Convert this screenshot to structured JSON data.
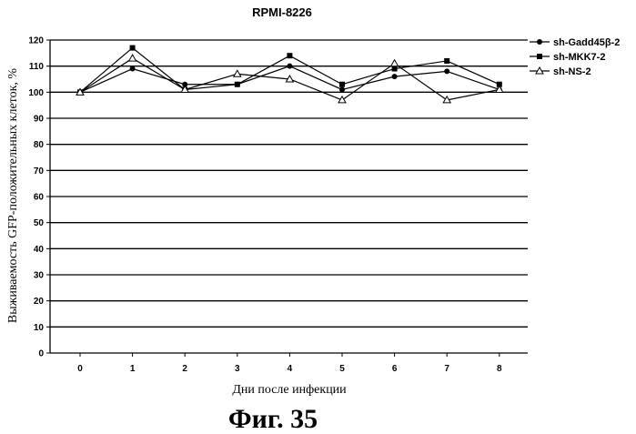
{
  "chart_data": {
    "type": "line",
    "title": "RPMI-8226",
    "xlabel": "Дни после инфекции",
    "ylabel": "Выживаемость GFP-положительных клеток, %",
    "x": [
      0,
      1,
      2,
      3,
      4,
      5,
      6,
      7,
      8
    ],
    "ylim": [
      0,
      120
    ],
    "yticks": [
      0,
      10,
      20,
      30,
      40,
      50,
      60,
      70,
      80,
      90,
      100,
      110,
      120
    ],
    "grid": true,
    "legend_position": "top-right",
    "series": [
      {
        "name": "sh-Gadd45β-2",
        "marker": "circle",
        "values": [
          100,
          109,
          103,
          103,
          110,
          101,
          106,
          108,
          101
        ]
      },
      {
        "name": "sh-MKK7-2",
        "marker": "square",
        "values": [
          100,
          117,
          101,
          103,
          114,
          103,
          109,
          112,
          103
        ]
      },
      {
        "name": "sh-NS-2",
        "marker": "triangle",
        "values": [
          100,
          113,
          101,
          107,
          105,
          97,
          111,
          97,
          101
        ]
      }
    ]
  },
  "figure_label": "Фиг. 35"
}
